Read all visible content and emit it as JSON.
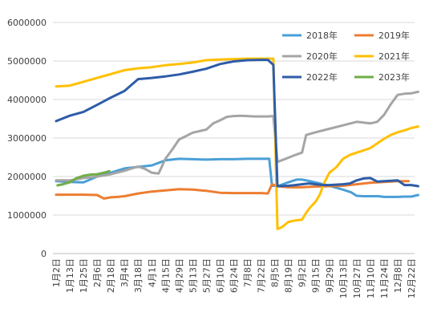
{
  "chart_data": {
    "type": "line",
    "title": "",
    "xlabel": "",
    "ylabel": "",
    "ylim": [
      0,
      6000000
    ],
    "y_ticks": [
      "0",
      "1000000",
      "2000000",
      "3000000",
      "4000000",
      "5000000",
      "6000000"
    ],
    "x_labels": [
      "1月2日",
      "1月13日",
      "1月25日",
      "2月6日",
      "2月18日",
      "3月4日",
      "3月18日",
      "4月1日",
      "4月15日",
      "4月29日",
      "5月13日",
      "5月27日",
      "6月10日",
      "6月24日",
      "7月8日",
      "7月22日",
      "8月5日",
      "8月19日",
      "9月2日",
      "9月15日",
      "9月29日",
      "10月13日",
      "10月27日",
      "11月10日",
      "11月24日",
      "12月8日",
      "12月22日"
    ],
    "grid": "horizontal",
    "legend": "top-right",
    "series": [
      {
        "name": "2018年",
        "color": "#4A9FD8",
        "x": [
          0,
          1,
          2,
          3,
          4,
          5,
          6,
          7,
          8,
          9,
          10,
          11,
          12,
          13,
          14,
          15,
          15.6,
          15.8,
          16.3,
          17,
          17.6,
          18,
          18.6,
          19.3,
          20,
          20.6,
          21,
          21.6,
          22,
          22.5,
          23,
          23.6,
          24,
          24.6,
          25,
          25.5,
          26,
          26.5
        ],
        "y": [
          1880000,
          1860000,
          1850000,
          2000000,
          2100000,
          2210000,
          2250000,
          2290000,
          2420000,
          2460000,
          2450000,
          2440000,
          2450000,
          2450000,
          2460000,
          2460000,
          2460000,
          1760000,
          1760000,
          1850000,
          1920000,
          1920000,
          1880000,
          1820000,
          1760000,
          1700000,
          1660000,
          1590000,
          1500000,
          1490000,
          1490000,
          1490000,
          1470000,
          1470000,
          1470000,
          1480000,
          1480000,
          1520000
        ]
      },
      {
        "name": "2019年",
        "color": "#ED7D31",
        "x": [
          0,
          1,
          2,
          3,
          3.5,
          4,
          4.5,
          5,
          6,
          7,
          8,
          9,
          10,
          11,
          12,
          13,
          14,
          15,
          15.5,
          15.8,
          16.2,
          17,
          18,
          19,
          20,
          21,
          22,
          23,
          24,
          25,
          25.8
        ],
        "y": [
          1530000,
          1530000,
          1530000,
          1520000,
          1430000,
          1460000,
          1470000,
          1490000,
          1560000,
          1610000,
          1640000,
          1670000,
          1660000,
          1630000,
          1580000,
          1570000,
          1570000,
          1570000,
          1560000,
          1800000,
          1750000,
          1720000,
          1720000,
          1740000,
          1750000,
          1760000,
          1800000,
          1840000,
          1860000,
          1880000,
          1880000
        ]
      },
      {
        "name": "2020年",
        "color": "#A5A5A5",
        "x": [
          0,
          1,
          2,
          3,
          4,
          5,
          6,
          6.5,
          7,
          7.5,
          8,
          8.5,
          9,
          9.5,
          10,
          10.5,
          11,
          11.5,
          12,
          12.5,
          13,
          13.5,
          14,
          14.5,
          15,
          15.5,
          15.9,
          16.2,
          17,
          17.5,
          18,
          18.3,
          19,
          20,
          21,
          22,
          22.5,
          23,
          23.5,
          24,
          24.5,
          25,
          25.5,
          26,
          26.5
        ],
        "y": [
          1900000,
          1900000,
          1960000,
          2000000,
          2060000,
          2150000,
          2260000,
          2200000,
          2100000,
          2080000,
          2460000,
          2700000,
          2960000,
          3050000,
          3140000,
          3180000,
          3220000,
          3380000,
          3460000,
          3550000,
          3570000,
          3580000,
          3570000,
          3560000,
          3560000,
          3560000,
          3570000,
          2380000,
          2490000,
          2560000,
          2620000,
          3080000,
          3150000,
          3240000,
          3330000,
          3420000,
          3400000,
          3380000,
          3420000,
          3600000,
          3880000,
          4120000,
          4150000,
          4160000,
          4200000
        ]
      },
      {
        "name": "2021年",
        "color": "#FFC000",
        "x": [
          0,
          1,
          2,
          3,
          4,
          5,
          6,
          7,
          8,
          9,
          10,
          11,
          12,
          13,
          14,
          15,
          15.9,
          16.2,
          16.5,
          17,
          17.5,
          18,
          18.3,
          18.6,
          19,
          19.3,
          19.6,
          20,
          20.5,
          21,
          21.5,
          22,
          22.5,
          23,
          23.5,
          24,
          24.5,
          25,
          25.5,
          26,
          26.5
        ],
        "y": [
          4340000,
          4360000,
          4460000,
          4560000,
          4660000,
          4760000,
          4810000,
          4840000,
          4890000,
          4920000,
          4960000,
          5020000,
          5040000,
          5050000,
          5060000,
          5060000,
          5060000,
          640000,
          680000,
          820000,
          860000,
          880000,
          1060000,
          1200000,
          1350000,
          1530000,
          1820000,
          2100000,
          2240000,
          2460000,
          2560000,
          2620000,
          2680000,
          2740000,
          2860000,
          2980000,
          3080000,
          3150000,
          3200000,
          3260000,
          3300000
        ]
      },
      {
        "name": "2022年",
        "color": "#2E5CA8",
        "x": [
          0,
          1,
          2,
          3,
          4,
          5,
          6,
          7,
          8,
          9,
          10,
          11,
          12,
          13,
          14,
          15,
          15.5,
          15.9,
          16.2,
          17,
          17.5,
          18,
          18.5,
          19,
          19.5,
          20,
          20.5,
          21,
          21.5,
          22,
          22.5,
          23,
          23.5,
          24,
          24.5,
          25,
          25.5,
          26,
          26.5
        ],
        "y": [
          3440000,
          3580000,
          3680000,
          3860000,
          4050000,
          4220000,
          4530000,
          4560000,
          4600000,
          4650000,
          4720000,
          4800000,
          4920000,
          4990000,
          5020000,
          5030000,
          5030000,
          4900000,
          1750000,
          1760000,
          1780000,
          1800000,
          1820000,
          1800000,
          1780000,
          1780000,
          1790000,
          1800000,
          1820000,
          1900000,
          1950000,
          1960000,
          1870000,
          1880000,
          1890000,
          1900000,
          1780000,
          1780000,
          1750000
        ]
      },
      {
        "name": "2023年",
        "color": "#70AD47",
        "x": [
          0.1,
          0.5,
          1,
          1.5,
          2,
          2.5,
          3,
          3.5,
          3.9
        ],
        "y": [
          1770000,
          1800000,
          1850000,
          1960000,
          2020000,
          2050000,
          2060000,
          2100000,
          2140000
        ]
      }
    ]
  }
}
